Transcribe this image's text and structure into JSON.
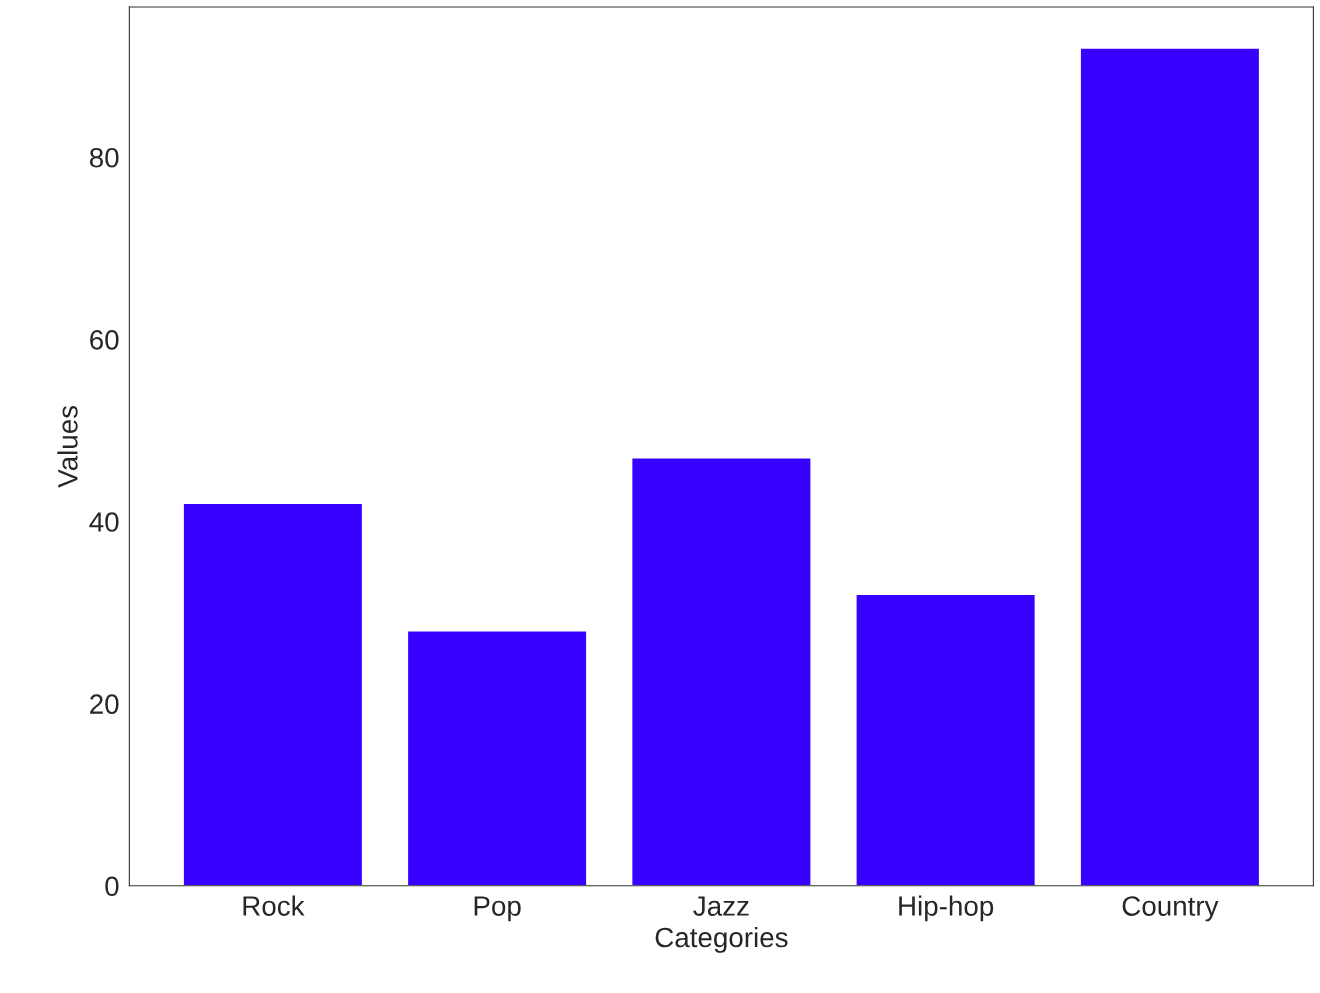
{
  "chart_data": {
    "type": "bar",
    "xlabel": "Categories",
    "ylabel": "Values",
    "categories": [
      "Rock",
      "Pop",
      "Jazz",
      "Hip-hop",
      "Country"
    ],
    "values": [
      42,
      28,
      47,
      32,
      92
    ],
    "color": "#3700ff",
    "ylim": [
      0,
      96.5
    ],
    "yticks": [
      0,
      20,
      40,
      60,
      80
    ],
    "grid": false
  }
}
